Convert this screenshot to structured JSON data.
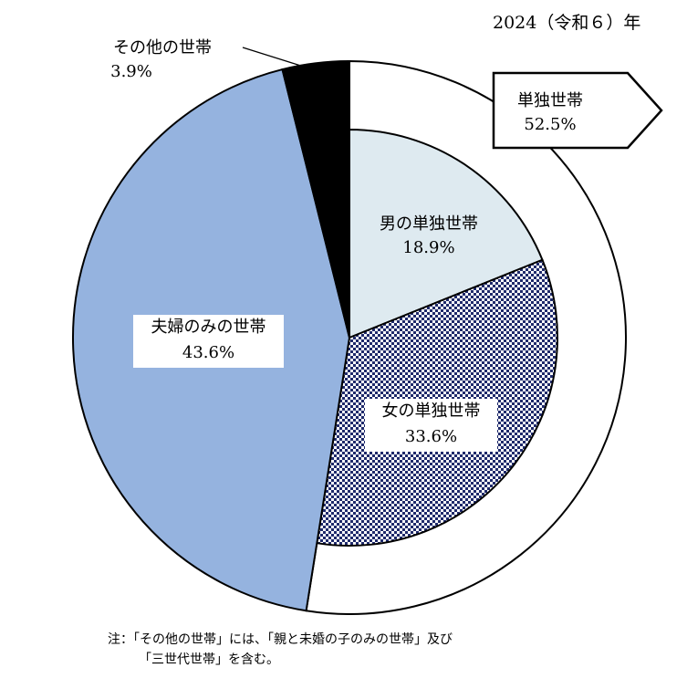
{
  "year_label": "2024（令和６）年",
  "colors": {
    "outer_single": "#ffffff",
    "male_single": "#deeaf0",
    "female_single_pattern": "#1f2a6b",
    "couple_only": "#95b3df",
    "other": "#000000"
  },
  "chart_data": {
    "type": "pie",
    "title": "",
    "outer_ring": [
      {
        "name": "単独世帯",
        "value": 52.5,
        "label": "52.5%"
      }
    ],
    "slices": [
      {
        "name": "男の単独世帯",
        "value": 18.9,
        "label": "18.9%"
      },
      {
        "name": "女の単独世帯",
        "value": 33.6,
        "label": "33.6%"
      },
      {
        "name": "夫婦のみの世帯",
        "value": 43.6,
        "label": "43.6%"
      },
      {
        "name": "その他の世帯",
        "value": 3.9,
        "label": "3.9%"
      }
    ]
  },
  "labels": {
    "single": {
      "name": "単独世帯",
      "value": "52.5%"
    },
    "male": {
      "name": "男の単独世帯",
      "value": "18.9%"
    },
    "female": {
      "name": "女の単独世帯",
      "value": "33.6%"
    },
    "couple": {
      "name": "夫婦のみの世帯",
      "value": "43.6%"
    },
    "other": {
      "name": "その他の世帯",
      "value": "3.9%"
    }
  },
  "note": {
    "line1": "注：「その他の世帯」には、「親と未婚の子のみの世帯」及び",
    "line2": "「三世代世帯」を含む。"
  }
}
